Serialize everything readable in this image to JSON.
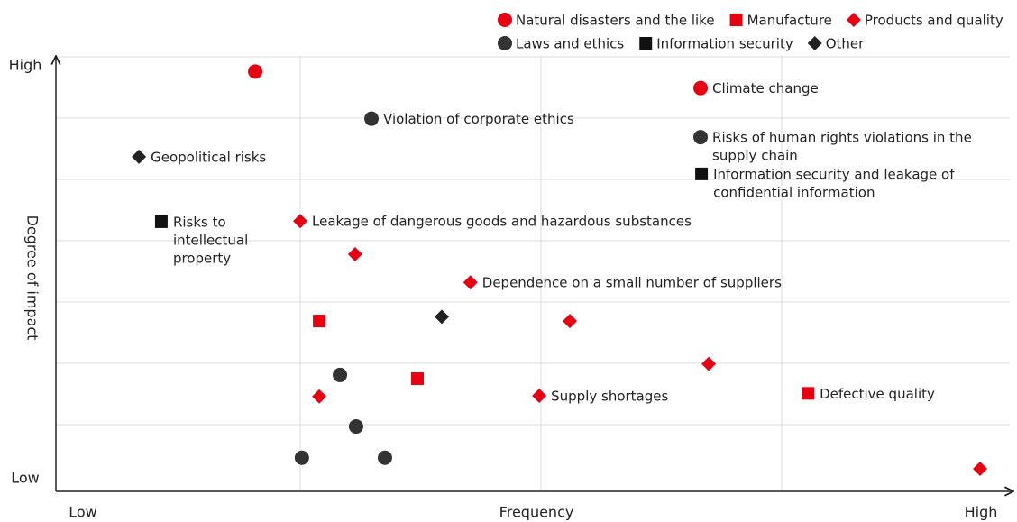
{
  "chart_data": {
    "type": "scatter",
    "xlabel": "Frequency",
    "ylabel": "Degree of impact",
    "x_end_labels": [
      "Low",
      "High"
    ],
    "y_end_labels": [
      "Low",
      "High"
    ],
    "xlim": [
      0,
      3.95
    ],
    "ylim": [
      0,
      7
    ],
    "xticks": [
      1,
      2,
      3
    ],
    "yticks": [
      1,
      2,
      3,
      4,
      5,
      6,
      7
    ],
    "grid": true,
    "series": [
      {
        "name": "Natural disasters and the like",
        "color": "#e60012",
        "marker": "circle",
        "x": [
          0.813,
          2.663
        ],
        "values": [
          6.76,
          6.49
        ],
        "labels": [
          null,
          [
            "Climate change"
          ]
        ]
      },
      {
        "name": "Manufacture",
        "color": "#e60012",
        "marker": "square",
        "x": [
          1.079,
          1.487,
          3.109
        ],
        "values": [
          2.69,
          1.75,
          1.51
        ],
        "labels": [
          null,
          null,
          [
            "Defective quality"
          ]
        ]
      },
      {
        "name": "Products and quality",
        "color": "#e60012",
        "marker": "diamond",
        "x": [
          1.0,
          1.228,
          1.707,
          2.12,
          2.697,
          1.993,
          1.079,
          3.824
        ],
        "values": [
          4.32,
          3.78,
          3.32,
          2.69,
          1.99,
          1.47,
          1.46,
          0.28
        ],
        "labels": [
          [
            "Leakage of dangerous goods and hazardous substances"
          ],
          null,
          [
            "Dependence on a small number of suppliers"
          ],
          null,
          null,
          [
            "Supply shortages"
          ],
          null,
          null
        ]
      },
      {
        "name": "Laws and ethics",
        "color": "#333333",
        "marker": "circle",
        "x": [
          1.296,
          2.663,
          1.165,
          1.232,
          1.007,
          1.352
        ],
        "values": [
          5.99,
          5.69,
          1.81,
          0.97,
          0.46,
          0.46
        ],
        "labels": [
          [
            "Violation of corporate ethics"
          ],
          [
            "Risks of human rights violations in the",
            "supply chain"
          ],
          null,
          null,
          null,
          null
        ]
      },
      {
        "name": "Information security",
        "color": "#111111",
        "marker": "square",
        "x": [
          2.667,
          0.423
        ],
        "values": [
          5.09,
          4.31
        ],
        "labels": [
          [
            "Information security and leakage of",
            "confidential information"
          ],
          [
            "Risks to",
            "intellectual",
            "property"
          ]
        ]
      },
      {
        "name": "Other",
        "color": "#222222",
        "marker": "diamond",
        "x": [
          0.33,
          1.588
        ],
        "values": [
          5.37,
          2.76
        ],
        "labels": [
          [
            "Geopolitical risks"
          ],
          null
        ]
      }
    ]
  }
}
